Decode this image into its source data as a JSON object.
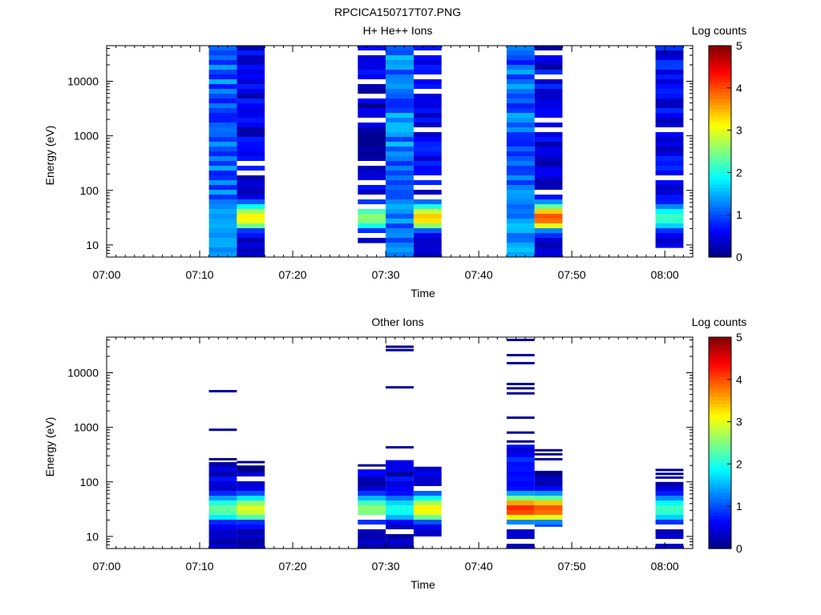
{
  "figure_title": "RPCICA150717T07.PNG",
  "chart_data": [
    {
      "type": "heatmap",
      "title": "H+ He++ Ions",
      "xlabel": "Time",
      "ylabel": "Energy (eV)",
      "x_ticks": [
        "07:00",
        "07:10",
        "07:20",
        "07:30",
        "07:40",
        "07:50",
        "08:00"
      ],
      "xlim": [
        "07:00",
        "08:03"
      ],
      "y_scale": "log",
      "y_ticks": [
        "10",
        "100",
        "1000",
        "10000"
      ],
      "ylim": [
        6,
        45000
      ],
      "colorbar": {
        "label": "Log counts",
        "range": [
          0,
          5
        ],
        "ticks": [
          "0",
          "1",
          "2",
          "3",
          "4",
          "5"
        ]
      },
      "columns": [
        {
          "start": "07:11",
          "end": "07:14",
          "emin": 6,
          "emax": 45000,
          "profile": "uniform-mid",
          "low_peak": 1.4,
          "background": 1.1,
          "gaps": []
        },
        {
          "start": "07:14",
          "end": "07:17",
          "emin": 6,
          "emax": 45000,
          "profile": "peaked",
          "low_peak": 3.2,
          "background": 0.5,
          "gaps": [
            200,
            320
          ]
        },
        {
          "start": "07:27",
          "end": "07:30",
          "emin": 11,
          "emax": 45000,
          "profile": "peaked",
          "low_peak": 2.6,
          "background": 0.4,
          "gaps": [
            16,
            55,
            75,
            150,
            300,
            1800,
            5000,
            10000,
            30000,
            36000
          ]
        },
        {
          "start": "07:30",
          "end": "07:33",
          "emin": 6,
          "emax": 45000,
          "profile": "uniform-mid",
          "low_peak": 1.2,
          "background": 1.2,
          "gaps": []
        },
        {
          "start": "07:33",
          "end": "07:36",
          "emin": 6,
          "emax": 45000,
          "profile": "peaked",
          "low_peak": 3.4,
          "background": 0.5,
          "gaps": [
            80,
            120,
            180,
            1300,
            6000,
            12000,
            30000
          ]
        },
        {
          "start": "07:43",
          "end": "07:46",
          "emin": 6,
          "emax": 45000,
          "profile": "uniform-mid",
          "low_peak": 1.6,
          "background": 1.1,
          "gaps": []
        },
        {
          "start": "07:46",
          "end": "07:49",
          "emin": 6,
          "emax": 45000,
          "profile": "peaked",
          "low_peak": 4.0,
          "background": 0.5,
          "gaps": [
            100,
            1200,
            1800,
            12000,
            30000
          ]
        },
        {
          "start": "07:59",
          "end": "08:02",
          "emin": 9,
          "emax": 45000,
          "profile": "peaked",
          "low_peak": 2.2,
          "background": 0.6,
          "gaps": [
            160,
            180,
            1400
          ]
        }
      ]
    },
    {
      "type": "heatmap",
      "title": "Other Ions",
      "xlabel": "Time",
      "ylabel": "Energy (eV)",
      "x_ticks": [
        "07:00",
        "07:10",
        "07:20",
        "07:30",
        "07:40",
        "07:50",
        "08:00"
      ],
      "xlim": [
        "07:00",
        "08:03"
      ],
      "y_scale": "log",
      "y_ticks": [
        "10",
        "100",
        "1000",
        "10000"
      ],
      "ylim": [
        6,
        45000
      ],
      "colorbar": {
        "label": "Log counts",
        "range": [
          0,
          5
        ],
        "ticks": [
          "0",
          "1",
          "2",
          "3",
          "4",
          "5"
        ]
      },
      "columns": [
        {
          "start": "07:11",
          "end": "07:14",
          "emin": 6,
          "emax": 230,
          "profile": "peaked",
          "low_peak": 2.4,
          "background": 0.4,
          "gaps": [],
          "lines": [
            260,
            900,
            4600
          ]
        },
        {
          "start": "07:14",
          "end": "07:17",
          "emin": 6,
          "emax": 200,
          "profile": "peaked",
          "low_peak": 3.0,
          "background": 0.2,
          "gaps": [
            110
          ],
          "lines": [
            230
          ]
        },
        {
          "start": "07:27",
          "end": "07:30",
          "emin": 6,
          "emax": 170,
          "profile": "peaked",
          "low_peak": 2.6,
          "background": 0.3,
          "gaps": [
            14,
            22
          ],
          "lines": [
            200
          ]
        },
        {
          "start": "07:30",
          "end": "07:33",
          "emin": 6,
          "emax": 250,
          "profile": "peaked",
          "low_peak": 2.0,
          "background": 0.4,
          "gaps": [
            12
          ],
          "lines": [
            430,
            5400,
            26000,
            30000
          ]
        },
        {
          "start": "07:33",
          "end": "07:36",
          "emin": 10,
          "emax": 190,
          "profile": "peaked",
          "low_peak": 3.2,
          "background": 0.4,
          "gaps": [
            80
          ],
          "lines": []
        },
        {
          "start": "07:43",
          "end": "07:46",
          "emin": 6,
          "emax": 480,
          "profile": "peaked",
          "low_peak": 4.2,
          "background": 0.6,
          "gaps": [
            9,
            16
          ],
          "lines": [
            550,
            800,
            1500,
            4200,
            5200,
            6200,
            15000,
            21000,
            40000
          ]
        },
        {
          "start": "07:46",
          "end": "07:49",
          "emin": 15,
          "emax": 160,
          "profile": "peaked",
          "low_peak": 4.0,
          "background": 0.3,
          "gaps": [],
          "lines": [
            260,
            320,
            380
          ]
        },
        {
          "start": "07:59",
          "end": "08:02",
          "emin": 6,
          "emax": 100,
          "profile": "peaked",
          "low_peak": 2.2,
          "background": 0.4,
          "gaps": [
            9,
            14
          ],
          "lines": [
            120,
            140,
            165
          ]
        }
      ]
    }
  ]
}
